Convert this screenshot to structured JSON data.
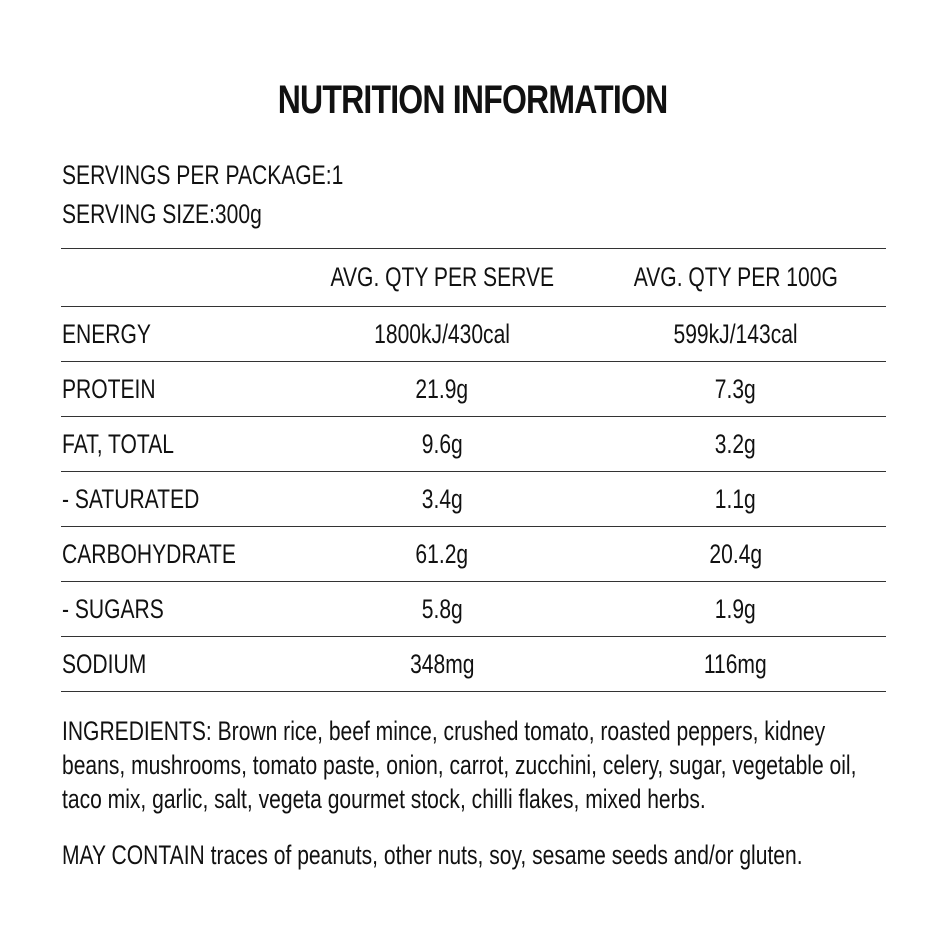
{
  "title": "NUTRITION INFORMATION",
  "servings": {
    "per_package_label": "SERVINGS PER PACKAGE:",
    "per_package_value": "1",
    "size_label": "SERVING SIZE:",
    "size_value": "300g"
  },
  "table": {
    "headers": [
      "",
      "AVG. QTY PER SERVE",
      "AVG. QTY PER 100G"
    ],
    "rows": [
      {
        "name": "ENERGY",
        "per_serve": "1800kJ/430cal",
        "per_100g": "599kJ/143cal"
      },
      {
        "name": "PROTEIN",
        "per_serve": "21.9g",
        "per_100g": "7.3g"
      },
      {
        "name": "FAT, TOTAL",
        "per_serve": "9.6g",
        "per_100g": "3.2g"
      },
      {
        "name": "- SATURATED",
        "per_serve": "3.4g",
        "per_100g": "1.1g"
      },
      {
        "name": "CARBOHYDRATE",
        "per_serve": "61.2g",
        "per_100g": "20.4g"
      },
      {
        "name": "- SUGARS",
        "per_serve": "5.8g",
        "per_100g": "1.9g"
      },
      {
        "name": "SODIUM",
        "per_serve": "348mg",
        "per_100g": "116mg"
      }
    ]
  },
  "ingredients": {
    "label": "INGREDIENTS:",
    "text": " Brown rice, beef mince, crushed tomato, roasted peppers, kidney beans, mushrooms, tomato paste, onion, carrot, zucchini, celery, sugar, vegetable oil, taco mix, garlic, salt, vegeta gourmet stock, chilli flakes, mixed herbs."
  },
  "may_contain": {
    "label": "MAY CONTAIN",
    "text": " traces of peanuts, other nuts, soy, sesame seeds and/or gluten."
  }
}
